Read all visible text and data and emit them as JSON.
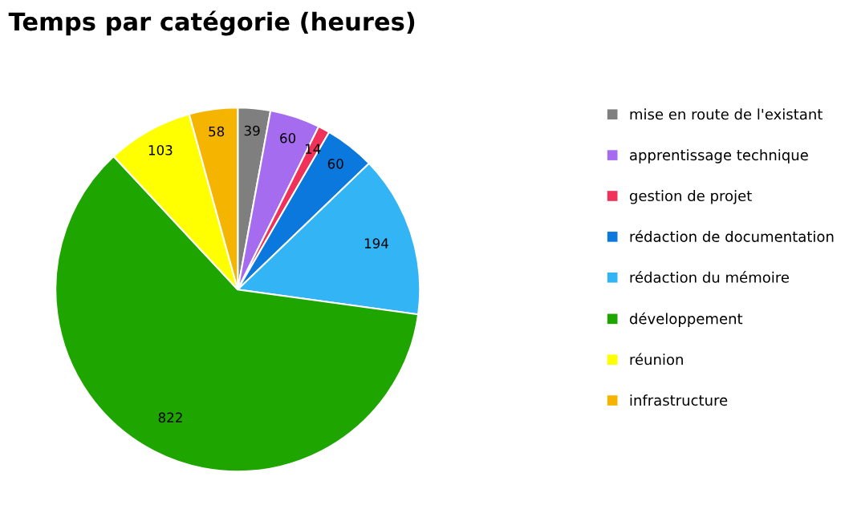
{
  "chart_data": {
    "type": "pie",
    "title": "Temps par catégorie (heures)",
    "categories": [
      "mise en route de l'existant",
      "apprentissage technique",
      "gestion de projet",
      "rédaction de documentation",
      "rédaction du mémoire",
      "développement",
      "réunion",
      "infrastructure"
    ],
    "values": [
      39,
      60,
      14,
      60,
      194,
      822,
      103,
      58
    ],
    "colors": [
      "#7f7f7f",
      "#a66cf0",
      "#f0325a",
      "#0a78dc",
      "#32b4f5",
      "#1ea500",
      "#ffff00",
      "#f5b400"
    ],
    "data_labels": true,
    "legend": "right"
  }
}
